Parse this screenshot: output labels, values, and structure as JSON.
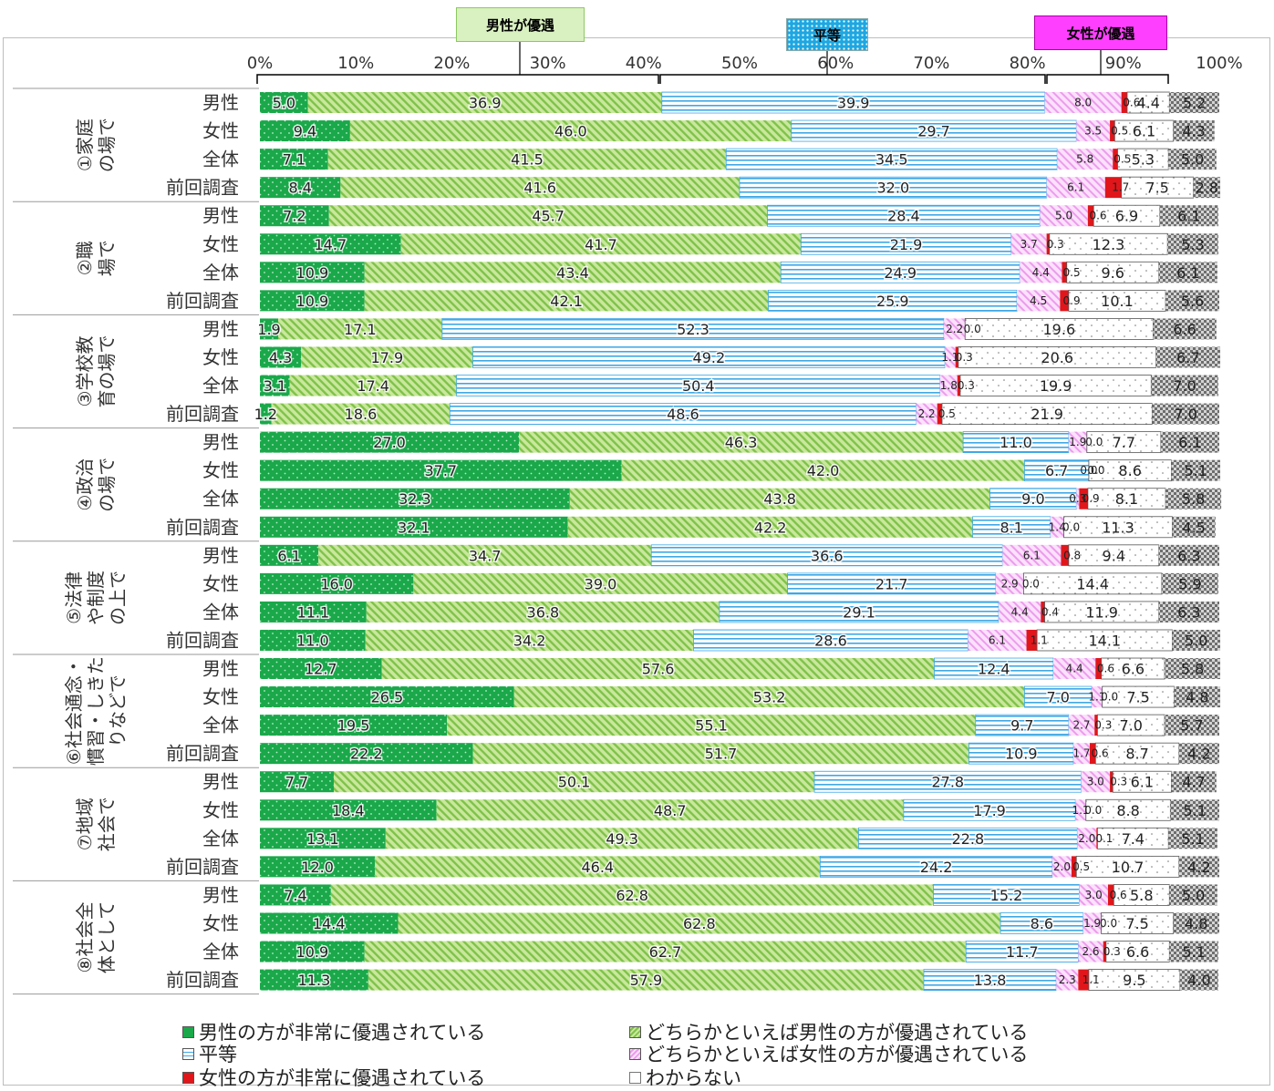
{
  "headers": {
    "men_favored": "男性が優遇",
    "equal": "平等",
    "women_favored": "女性が優遇"
  },
  "colors": {
    "s1": "#1aa84a",
    "s2": "#a7d86b",
    "s3": "#5bb8ea",
    "s4": "#ef9cef",
    "s5": "#e0161b",
    "s6": "#ffffff",
    "s7": "#7f7f7f"
  },
  "legend": [
    {
      "key": "s1",
      "label": "男性の方が非常に優遇されている"
    },
    {
      "key": "s2",
      "label": "どちらかといえば男性の方が優遇されている"
    },
    {
      "key": "s3",
      "label": "平等"
    },
    {
      "key": "s4",
      "label": "どちらかといえば女性の方が優遇されている"
    },
    {
      "key": "s5",
      "label": "女性の方が非常に優遇されている"
    },
    {
      "key": "s6",
      "label": "わからない"
    }
  ],
  "chart_data": {
    "type": "bar",
    "orientation": "horizontal",
    "stacked": true,
    "xlim": [
      0,
      100
    ],
    "x_ticks": [
      "0%",
      "10%",
      "20%",
      "30%",
      "40%",
      "50%",
      "60%",
      "70%",
      "80%",
      "90%",
      "100%"
    ],
    "series_names": [
      "男性の方が非常に優遇されている",
      "どちらかといえば男性の方が優遇されている",
      "平等",
      "どちらかといえば女性の方が優遇されている",
      "女性の方が非常に優遇されている",
      "わからない",
      ""
    ],
    "groups": [
      {
        "label": "①家庭の場で",
        "rows": [
          {
            "label": "男性",
            "values": [
              5.0,
              36.9,
              39.9,
              8.0,
              0.6,
              4.4,
              5.2
            ]
          },
          {
            "label": "女性",
            "values": [
              9.4,
              46.0,
              29.7,
              3.5,
              0.5,
              6.1,
              4.3
            ]
          },
          {
            "label": "全体",
            "values": [
              7.1,
              41.5,
              34.5,
              5.8,
              0.5,
              5.3,
              5.0
            ]
          },
          {
            "label": "前回調査",
            "values": [
              8.4,
              41.6,
              32.0,
              6.1,
              1.7,
              7.5,
              2.8
            ]
          }
        ]
      },
      {
        "label": "②職場で",
        "rows": [
          {
            "label": "男性",
            "values": [
              7.2,
              45.7,
              28.4,
              5.0,
              0.6,
              6.9,
              6.1
            ]
          },
          {
            "label": "女性",
            "values": [
              14.7,
              41.7,
              21.9,
              3.7,
              0.3,
              12.3,
              5.3
            ]
          },
          {
            "label": "全体",
            "values": [
              10.9,
              43.4,
              24.9,
              4.4,
              0.5,
              9.6,
              6.1
            ]
          },
          {
            "label": "前回調査",
            "values": [
              10.9,
              42.1,
              25.9,
              4.5,
              0.9,
              10.1,
              5.6
            ]
          }
        ]
      },
      {
        "label": "③学校教育の場で",
        "rows": [
          {
            "label": "男性",
            "values": [
              1.9,
              17.1,
              52.3,
              2.2,
              0.0,
              19.6,
              6.6
            ]
          },
          {
            "label": "女性",
            "values": [
              4.3,
              17.9,
              49.2,
              1.1,
              0.3,
              20.6,
              6.7
            ]
          },
          {
            "label": "全体",
            "values": [
              3.1,
              17.4,
              50.4,
              1.8,
              0.3,
              19.9,
              7.0
            ]
          },
          {
            "label": "前回調査",
            "values": [
              1.2,
              18.6,
              48.6,
              2.2,
              0.5,
              21.9,
              7.0
            ]
          }
        ]
      },
      {
        "label": "④政治の場で",
        "rows": [
          {
            "label": "男性",
            "values": [
              27.0,
              46.3,
              11.0,
              1.9,
              0.0,
              7.7,
              6.1
            ]
          },
          {
            "label": "女性",
            "values": [
              37.7,
              42.0,
              6.7,
              0.0,
              0.0,
              8.6,
              5.1
            ]
          },
          {
            "label": "全体",
            "values": [
              32.3,
              43.8,
              9.0,
              0.3,
              0.9,
              8.1,
              5.8
            ]
          },
          {
            "label": "前回調査",
            "values": [
              32.1,
              42.2,
              8.1,
              1.4,
              0.0,
              11.3,
              4.5
            ]
          }
        ]
      },
      {
        "label": "⑤法律や制度の上で",
        "rows": [
          {
            "label": "男性",
            "values": [
              6.1,
              34.7,
              36.6,
              6.1,
              0.8,
              9.4,
              6.3
            ]
          },
          {
            "label": "女性",
            "values": [
              16.0,
              39.0,
              21.7,
              2.9,
              0.0,
              14.4,
              5.9
            ]
          },
          {
            "label": "全体",
            "values": [
              11.1,
              36.8,
              29.1,
              4.4,
              0.4,
              11.9,
              6.3
            ]
          },
          {
            "label": "前回調査",
            "values": [
              11.0,
              34.2,
              28.6,
              6.1,
              1.1,
              14.1,
              5.0
            ]
          }
        ]
      },
      {
        "label": "⑥社会通念・慣習・しきたりなどで",
        "rows": [
          {
            "label": "男性",
            "values": [
              12.7,
              57.6,
              12.4,
              4.4,
              0.6,
              6.6,
              5.8
            ]
          },
          {
            "label": "女性",
            "values": [
              26.5,
              53.2,
              7.0,
              1.1,
              0.0,
              7.5,
              4.8
            ]
          },
          {
            "label": "全体",
            "values": [
              19.5,
              55.1,
              9.7,
              2.7,
              0.3,
              7.0,
              5.7
            ]
          },
          {
            "label": "前回調査",
            "values": [
              22.2,
              51.7,
              10.9,
              1.7,
              0.6,
              8.7,
              4.2
            ]
          }
        ]
      },
      {
        "label": "⑦地域社会で",
        "rows": [
          {
            "label": "男性",
            "values": [
              7.7,
              50.1,
              27.8,
              3.0,
              0.3,
              6.1,
              4.7
            ]
          },
          {
            "label": "女性",
            "values": [
              18.4,
              48.7,
              17.9,
              1.1,
              0.0,
              8.8,
              5.1
            ]
          },
          {
            "label": "全体",
            "values": [
              13.1,
              49.3,
              22.8,
              2.0,
              0.1,
              7.4,
              5.1
            ]
          },
          {
            "label": "前回調査",
            "values": [
              12.0,
              46.4,
              24.2,
              2.0,
              0.5,
              10.7,
              4.2
            ]
          }
        ]
      },
      {
        "label": "⑧社会全体として",
        "rows": [
          {
            "label": "男性",
            "values": [
              7.4,
              62.8,
              15.2,
              3.0,
              0.6,
              5.8,
              5.0
            ]
          },
          {
            "label": "女性",
            "values": [
              14.4,
              62.8,
              8.6,
              1.9,
              0.0,
              7.5,
              4.8
            ]
          },
          {
            "label": "全体",
            "values": [
              10.9,
              62.7,
              11.7,
              2.6,
              0.3,
              6.6,
              5.1
            ]
          },
          {
            "label": "前回調査",
            "values": [
              11.3,
              57.9,
              13.8,
              2.3,
              1.1,
              9.5,
              4.0
            ]
          }
        ]
      }
    ]
  }
}
